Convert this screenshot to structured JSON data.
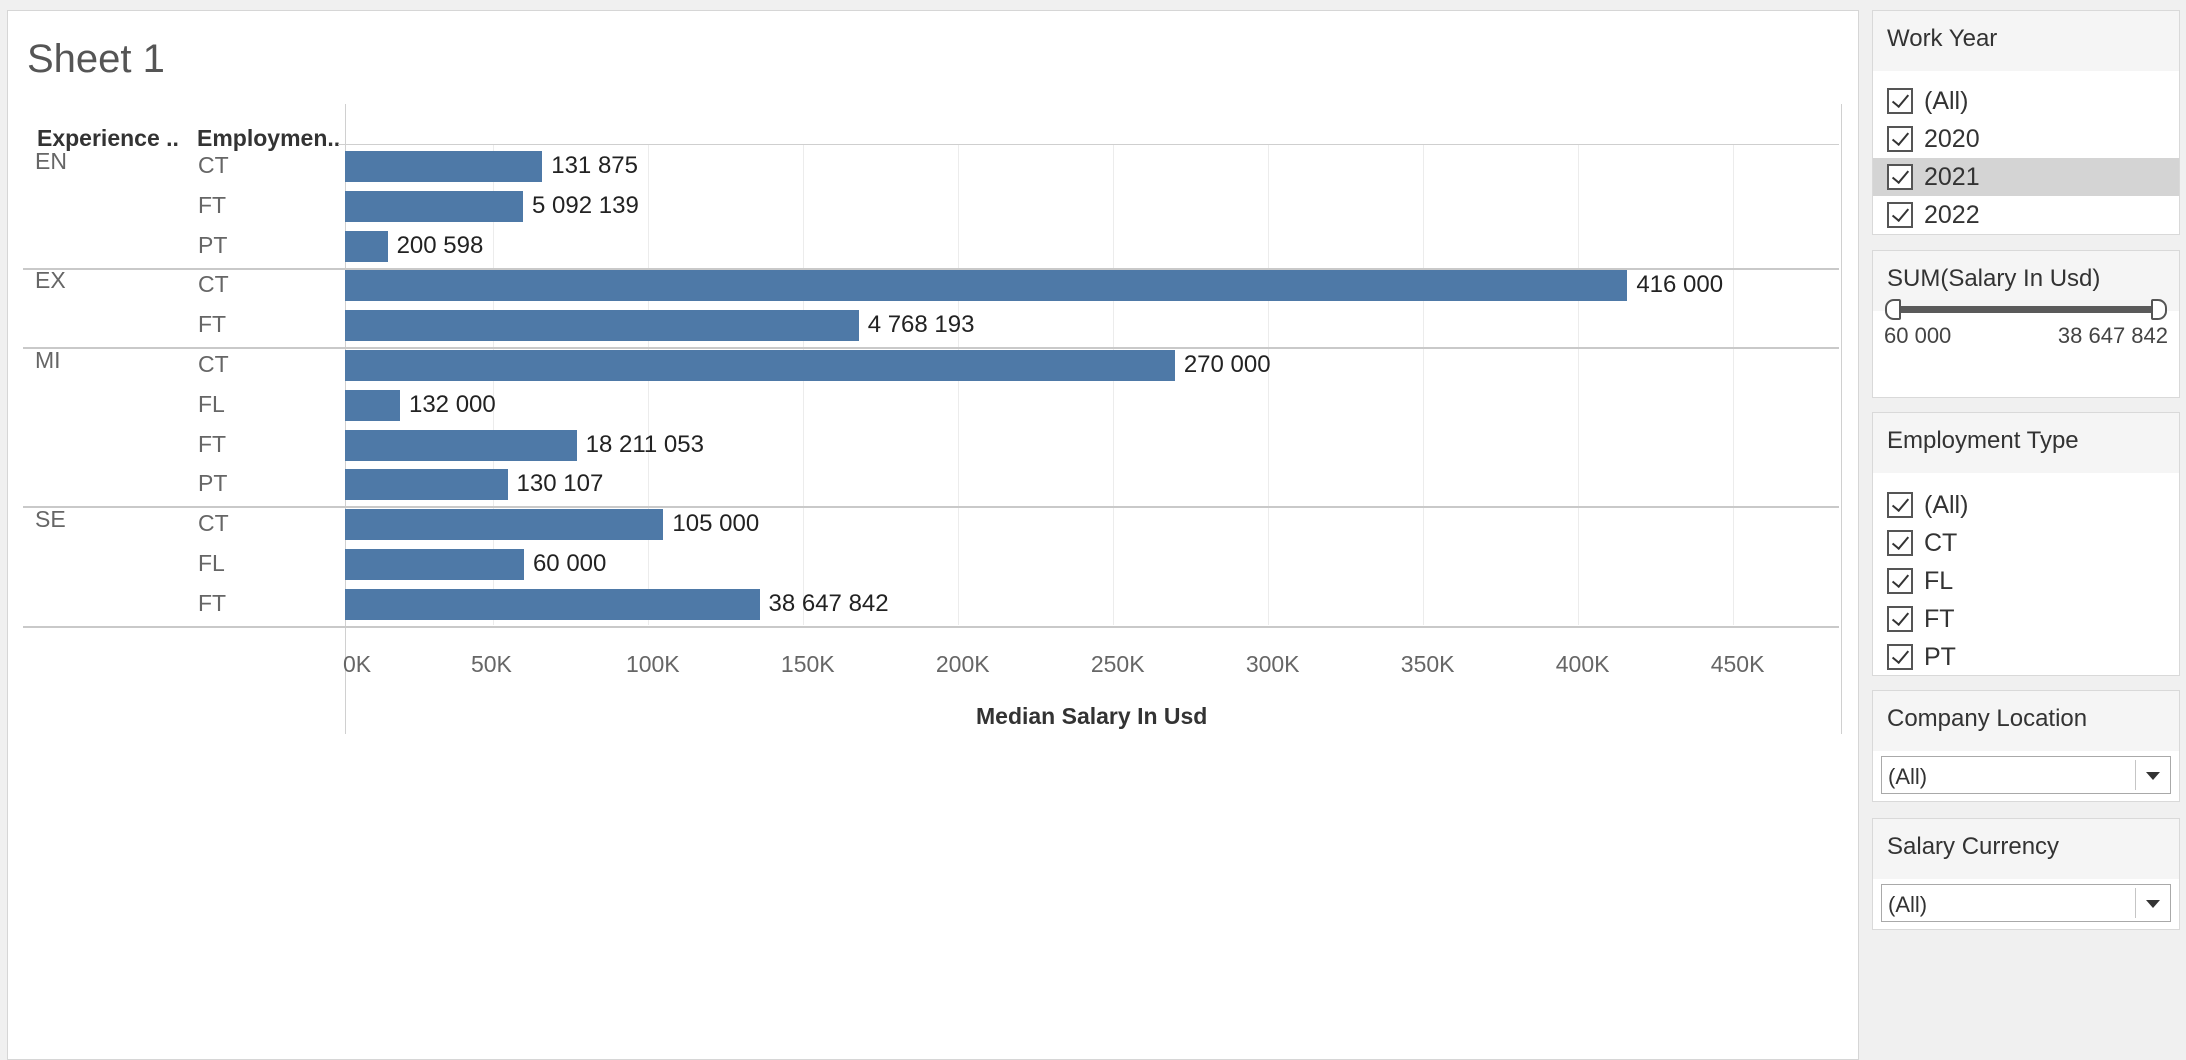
{
  "sheet": {
    "title": "Sheet 1",
    "headers": {
      "experience": "Experience ..",
      "employment": "Employmen.."
    }
  },
  "chart_data": {
    "type": "bar",
    "orientation": "horizontal",
    "xlabel": "Median Salary In Usd",
    "xlim": [
      0,
      483000
    ],
    "x_ticks": [
      "0K",
      "50K",
      "100K",
      "150K",
      "200K",
      "250K",
      "300K",
      "350K",
      "400K",
      "450K"
    ],
    "grid": true,
    "bar_color": "#4e79a7",
    "groups": [
      {
        "experience": "EN",
        "rows": [
          {
            "employment": "CT",
            "value": 65900,
            "label": "131 875"
          },
          {
            "employment": "FT",
            "value": 59700,
            "label": "5 092 139"
          },
          {
            "employment": "PT",
            "value": 16000,
            "label": "200 598"
          }
        ]
      },
      {
        "experience": "EX",
        "rows": [
          {
            "employment": "CT",
            "value": 416000,
            "label": "416 000"
          },
          {
            "employment": "FT",
            "value": 168000,
            "label": "4 768 193"
          }
        ]
      },
      {
        "experience": "MI",
        "rows": [
          {
            "employment": "CT",
            "value": 270000,
            "label": "270 000"
          },
          {
            "employment": "FL",
            "value": 20000,
            "label": "132 000"
          },
          {
            "employment": "FT",
            "value": 77000,
            "label": "18 211 053"
          },
          {
            "employment": "PT",
            "value": 54700,
            "label": "130 107"
          }
        ]
      },
      {
        "experience": "SE",
        "rows": [
          {
            "employment": "CT",
            "value": 105000,
            "label": "105 000"
          },
          {
            "employment": "FL",
            "value": 60000,
            "label": "60 000"
          },
          {
            "employment": "FT",
            "value": 136000,
            "label": "38 647 842"
          }
        ]
      }
    ]
  },
  "filters": {
    "work_year": {
      "title": "Work Year",
      "options": [
        {
          "label": "(All)",
          "checked": true
        },
        {
          "label": "2020",
          "checked": true
        },
        {
          "label": "2021",
          "checked": true,
          "highlighted": true
        },
        {
          "label": "2022",
          "checked": true
        }
      ]
    },
    "salary_sum": {
      "title": "SUM(Salary In Usd)",
      "min": "60 000",
      "max": "38 647 842"
    },
    "employment_type": {
      "title": "Employment Type",
      "options": [
        {
          "label": "(All)",
          "checked": true
        },
        {
          "label": "CT",
          "checked": true
        },
        {
          "label": "FL",
          "checked": true
        },
        {
          "label": "FT",
          "checked": true
        },
        {
          "label": "PT",
          "checked": true
        }
      ]
    },
    "company_location": {
      "title": "Company Location",
      "value": "(All)"
    },
    "salary_currency": {
      "title": "Salary Currency",
      "value": "(All)"
    }
  }
}
